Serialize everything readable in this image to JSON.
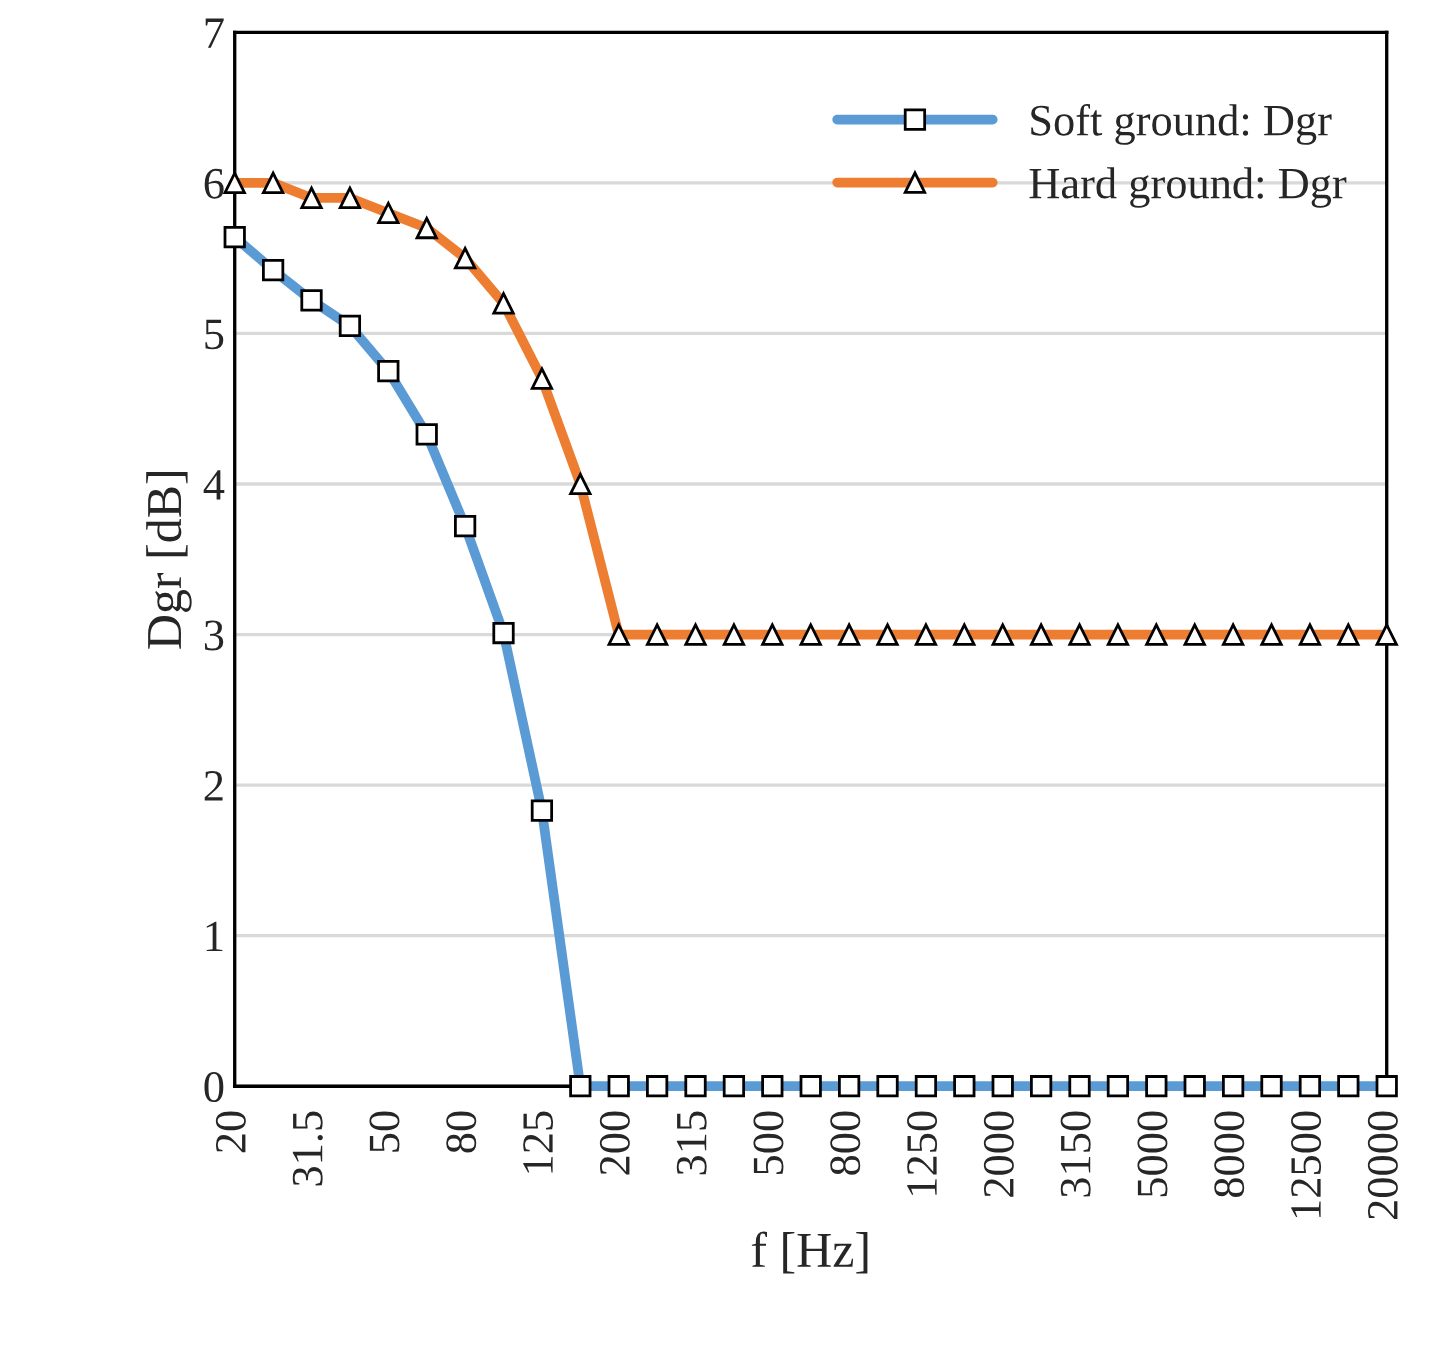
{
  "chart_data": {
    "type": "line",
    "xlabel": "f [Hz]",
    "ylabel": "Dgr [dB]",
    "categories": [
      "20",
      null,
      "31.5",
      null,
      "50",
      null,
      "80",
      null,
      "125",
      null,
      "200",
      null,
      "315",
      null,
      "500",
      null,
      "800",
      null,
      "1250",
      null,
      "2000",
      null,
      "3150",
      null,
      "5000",
      null,
      "8000",
      null,
      "12500",
      null,
      "20000"
    ],
    "series": [
      {
        "name": "Soft ground: Dgr",
        "color": "#5b9bd5",
        "marker": "square",
        "values": [
          5.64,
          5.42,
          5.22,
          5.05,
          4.75,
          4.33,
          3.72,
          3.01,
          1.83,
          0,
          0,
          0,
          0,
          0,
          0,
          0,
          0,
          0,
          0,
          0,
          0,
          0,
          0,
          0,
          0,
          0,
          0,
          0,
          0,
          0,
          0
        ]
      },
      {
        "name": "Hard ground: Dgr",
        "color": "#ed7d31",
        "marker": "triangle",
        "values": [
          6.0,
          6.0,
          5.9,
          5.9,
          5.8,
          5.7,
          5.5,
          5.2,
          4.7,
          4.0,
          3,
          3,
          3,
          3,
          3,
          3,
          3,
          3,
          3,
          3,
          3,
          3,
          3,
          3,
          3,
          3,
          3,
          3,
          3,
          3,
          3
        ]
      }
    ],
    "ylim": [
      0,
      7
    ],
    "yticks": [
      0,
      1,
      2,
      3,
      4,
      5,
      6,
      7
    ],
    "grid": "y",
    "legend": "top right",
    "line_style": "solid"
  }
}
